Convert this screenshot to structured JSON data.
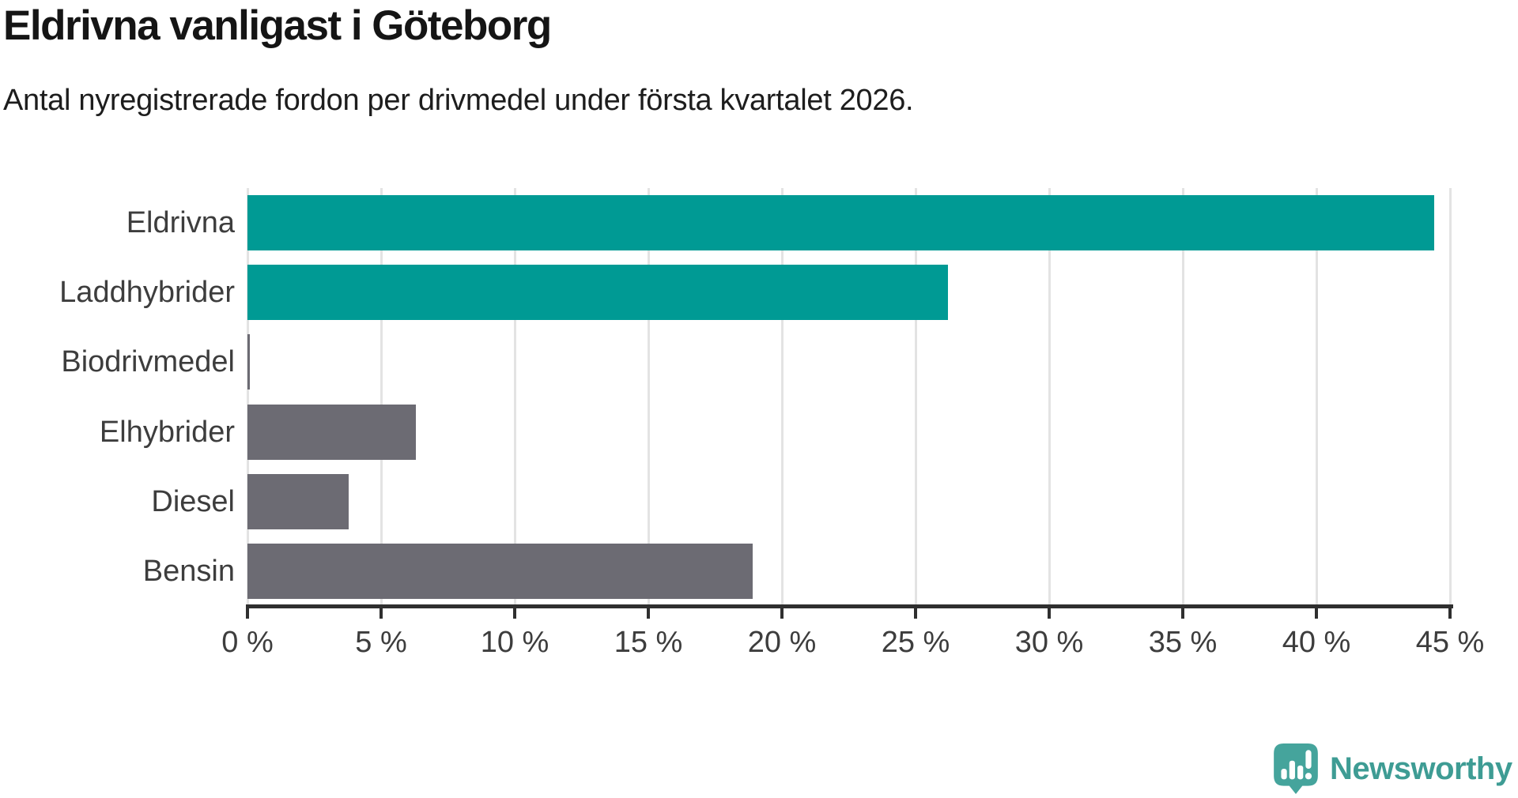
{
  "chart_data": {
    "type": "bar",
    "orientation": "horizontal",
    "title": "Eldrivna vanligast i Göteborg",
    "subtitle": "Antal nyregistrerade fordon per drivmedel under första kvartalet 2026.",
    "categories": [
      "Eldrivna",
      "Laddhybrider",
      "Biodrivmedel",
      "Elhybrider",
      "Diesel",
      "Bensin"
    ],
    "values": [
      44.4,
      26.2,
      0.1,
      6.3,
      3.8,
      18.9
    ],
    "unit": "%",
    "bar_colors": [
      "#009a94",
      "#009a94",
      "#6c6b73",
      "#6c6b73",
      "#6c6b73",
      "#6c6b73"
    ],
    "xlim": [
      0,
      45
    ],
    "x_ticks": [
      0,
      5,
      10,
      15,
      20,
      25,
      30,
      35,
      40,
      45
    ],
    "x_tick_labels": [
      "0 %",
      "5 %",
      "10 %",
      "15 %",
      "20 %",
      "25 %",
      "30 %",
      "35 %",
      "40 %",
      "45 %"
    ],
    "grid": "vertical",
    "legend": "none"
  },
  "colors": {
    "accent_teal": "#009a94",
    "bar_gray": "#6c6b73",
    "grid_line": "#e3e3e3",
    "axis_line": "#2f2f2f",
    "title_text": "#151515",
    "label_text": "#3d3d3d",
    "brand_teal": "#3e9c94"
  },
  "footer": {
    "brand": "Newsworthy"
  }
}
